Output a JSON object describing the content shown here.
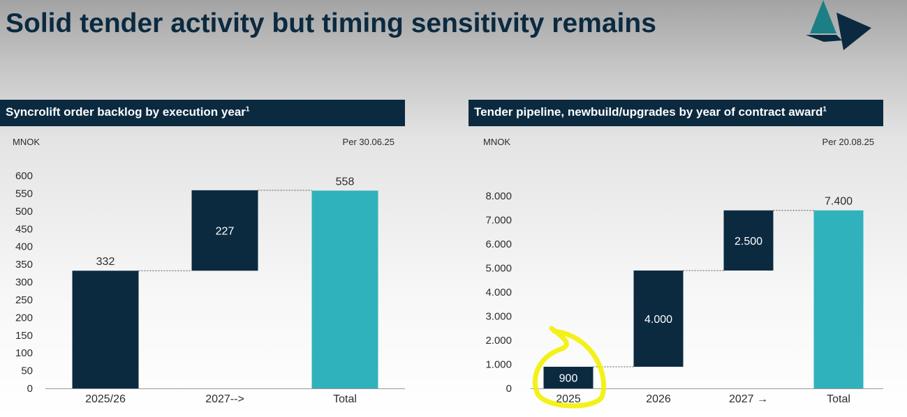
{
  "page": {
    "title": "Solid tender activity but timing sensitivity remains"
  },
  "colors": {
    "dark_bar": "#0b2a40",
    "total_bar": "#2fb2bb",
    "header_bg": "#0b2a40",
    "highlight": "#f2f000"
  },
  "icons": {
    "logo": "triangle-logo-icon"
  },
  "left_panel": {
    "header": "Syncrolift order backlog by execution year",
    "footnote_marker": "1",
    "unit": "MNOK",
    "as_of": "Per 30.06.25"
  },
  "right_panel": {
    "header": "Tender pipeline, newbuild/upgrades by year of contract award",
    "footnote_marker": "1",
    "unit": "MNOK",
    "as_of": "Per 20.08.25"
  },
  "chart_data": [
    {
      "type": "bar",
      "subtype": "waterfall",
      "title": "Syncrolift order backlog by execution year",
      "ylabel": "MNOK",
      "ylim": [
        0,
        600
      ],
      "yticks": [
        0,
        50,
        100,
        150,
        200,
        250,
        300,
        350,
        400,
        450,
        500,
        550,
        600
      ],
      "ytick_labels": [
        "0",
        "50",
        "100",
        "150",
        "200",
        "250",
        "300",
        "350",
        "400",
        "450",
        "500",
        "550",
        "600"
      ],
      "categories": [
        "2025/26",
        "2027-->",
        "Total"
      ],
      "values": [
        332,
        227,
        558
      ],
      "value_labels": [
        "332",
        "227",
        "558"
      ],
      "bases": [
        0,
        332,
        0
      ],
      "is_total": [
        false,
        false,
        true
      ],
      "grid": false
    },
    {
      "type": "bar",
      "subtype": "waterfall",
      "title": "Tender pipeline, newbuild/upgrades by year of contract award",
      "ylabel": "MNOK",
      "ylim": [
        0,
        8000
      ],
      "yticks": [
        0,
        1000,
        2000,
        3000,
        4000,
        5000,
        6000,
        7000,
        8000
      ],
      "ytick_labels": [
        "0",
        "1.000",
        "2.000",
        "3.000",
        "4.000",
        "5.000",
        "6.000",
        "7.000",
        "8.000"
      ],
      "categories": [
        "2025",
        "2026",
        "2027 →",
        "Total"
      ],
      "values": [
        900,
        4000,
        2500,
        7400
      ],
      "value_labels": [
        "900",
        "4.000",
        "2.500",
        "7.400"
      ],
      "bases": [
        0,
        900,
        4900,
        0
      ],
      "is_total": [
        false,
        false,
        false,
        true
      ],
      "highlighted_category": "2025",
      "grid": false
    }
  ]
}
